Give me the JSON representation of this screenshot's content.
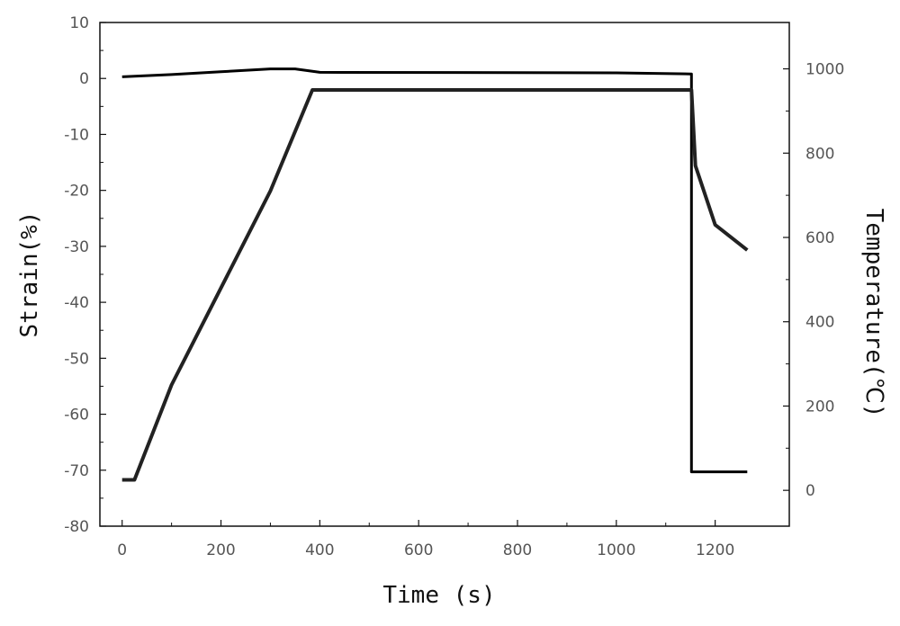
{
  "chart_data": {
    "type": "line",
    "title": "",
    "xlabel": "Time (s)",
    "ylabel_left": "Strain(%)",
    "ylabel_right": "Temperature(℃)",
    "xlim": [
      -45,
      1350
    ],
    "ylim_left": [
      -80,
      10
    ],
    "ylim_right": [
      -85,
      1110
    ],
    "x_ticks": [
      0,
      200,
      400,
      600,
      800,
      1000,
      1200
    ],
    "y_left_ticks": [
      10,
      0,
      -10,
      -20,
      -30,
      -40,
      -50,
      -60,
      -70,
      -80
    ],
    "y_right_ticks": [
      0,
      200,
      400,
      600,
      800,
      1000
    ],
    "grid": false,
    "series": [
      {
        "axis": "left",
        "color": "#000000",
        "x": [
          0,
          100,
          200,
          300,
          350,
          400,
          1000,
          1150,
          1152,
          1152,
          1265
        ],
        "y": [
          0.3,
          0.7,
          1.2,
          1.7,
          1.7,
          1.1,
          1.0,
          0.8,
          0.8,
          -70.3,
          -70.3
        ]
      },
      {
        "axis": "right",
        "color": "#222222",
        "x": [
          0,
          25,
          100,
          200,
          300,
          385,
          400,
          1150,
          1152,
          1160,
          1200,
          1265
        ],
        "y": [
          25,
          25,
          250,
          480,
          710,
          950,
          950,
          950,
          950,
          770,
          630,
          570
        ]
      }
    ]
  }
}
